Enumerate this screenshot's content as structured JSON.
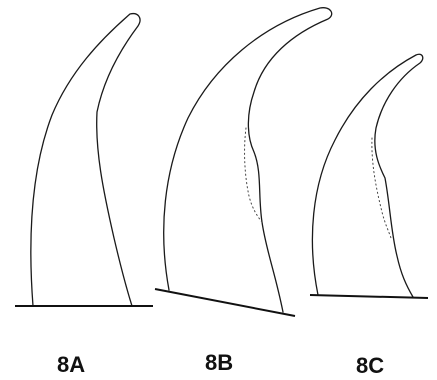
{
  "panels": [
    {
      "label": "8A"
    },
    {
      "label": "8B"
    },
    {
      "label": "8C"
    }
  ]
}
